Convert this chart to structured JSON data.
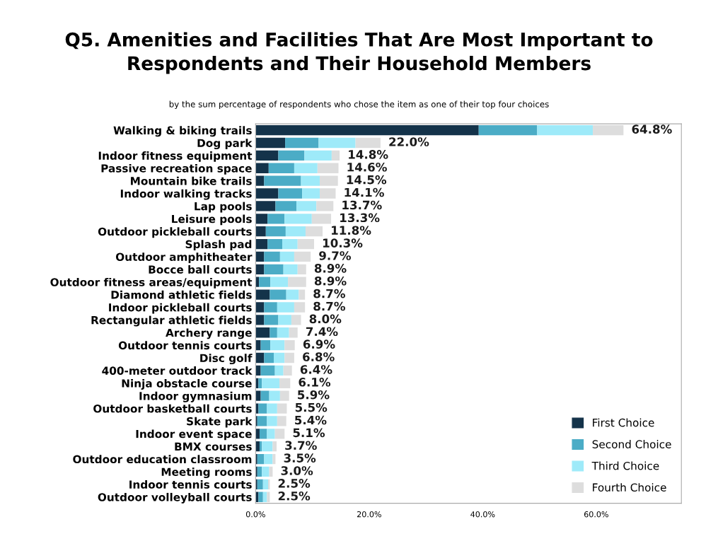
{
  "chart_data": {
    "type": "bar",
    "orientation": "horizontal",
    "stacked": true,
    "title": "Q5. Amenities and Facilities That Are Most Important to\nRespondents and Their Household Members",
    "subtitle": "by the sum percentage of respondents who chose the item as one of their top four choices",
    "categories": [
      "Walking & biking trails",
      "Dog park",
      "Indoor fitness equipment",
      "Passive recreation space",
      "Mountain bike trails",
      "Indoor walking tracks",
      "Lap pools",
      "Leisure pools",
      "Outdoor pickleball courts",
      "Splash pad",
      "Outdoor amphitheater",
      "Bocce ball courts",
      "Outdoor fitness areas/equipment",
      "Diamond athletic fields",
      "Indoor pickleball courts",
      "Rectangular athletic fields",
      "Archery range",
      "Outdoor tennis courts",
      "Disc golf",
      "400-meter outdoor track",
      "Ninja obstacle course",
      "Indoor gymnasium",
      "Outdoor basketball courts",
      "Skate park",
      "Indoor event space",
      "BMX courses",
      "Outdoor education classroom",
      "Meeting rooms",
      "Indoor tennis courts",
      "Outdoor volleyball courts"
    ],
    "series": [
      {
        "name": "First Choice",
        "color": "#14334a",
        "values": [
          39.3,
          5.2,
          4.0,
          2.3,
          1.5,
          4.0,
          3.5,
          2.1,
          1.8,
          2.1,
          1.5,
          1.5,
          0.6,
          2.5,
          1.5,
          1.5,
          2.5,
          0.9,
          1.5,
          0.9,
          0.5,
          0.9,
          0.5,
          0.3,
          0.7,
          0.7,
          0.3,
          0.3,
          0.3,
          0.5
        ]
      },
      {
        "name": "Second Choice",
        "color": "#4bacc6",
        "values": [
          10.3,
          5.9,
          4.6,
          4.5,
          6.5,
          4.2,
          3.7,
          3.0,
          3.5,
          2.6,
          2.8,
          3.4,
          2.0,
          2.9,
          2.3,
          2.5,
          1.3,
          1.7,
          1.7,
          2.5,
          0.6,
          1.5,
          1.5,
          1.7,
          1.3,
          0.4,
          1.2,
          0.8,
          1.0,
          0.8
        ]
      },
      {
        "name": "Third Choice",
        "color": "#9eeaf9",
        "values": [
          9.8,
          6.5,
          4.8,
          4.1,
          3.3,
          3.1,
          3.5,
          4.8,
          3.5,
          2.7,
          2.5,
          2.5,
          3.1,
          2.2,
          3.0,
          2.3,
          2.1,
          2.5,
          1.9,
          1.5,
          3.1,
          1.9,
          1.8,
          1.8,
          1.4,
          1.9,
          1.5,
          1.3,
          0.9,
          0.7
        ]
      },
      {
        "name": "Fourth Choice",
        "color": "#dddddd",
        "values": [
          5.4,
          4.4,
          1.4,
          3.7,
          3.2,
          2.8,
          3.0,
          3.4,
          3.0,
          2.9,
          2.9,
          1.5,
          3.2,
          1.1,
          1.9,
          1.7,
          1.5,
          1.8,
          1.7,
          1.5,
          1.9,
          1.6,
          1.7,
          1.6,
          1.7,
          0.7,
          0.5,
          0.6,
          0.3,
          0.5
        ]
      }
    ],
    "totals": [
      "64.8%",
      "22.0%",
      "14.8%",
      "14.6%",
      "14.5%",
      "14.1%",
      "13.7%",
      "13.3%",
      "11.8%",
      "10.3%",
      "9.7%",
      "8.9%",
      "8.9%",
      "8.7%",
      "8.7%",
      "8.0%",
      "7.4%",
      "6.9%",
      "6.8%",
      "6.4%",
      "6.1%",
      "5.9%",
      "5.5%",
      "5.4%",
      "5.1%",
      "3.7%",
      "3.5%",
      "3.0%",
      "2.5%",
      "2.5%"
    ],
    "xlim": [
      0,
      75
    ],
    "xticks": [
      {
        "value": 0,
        "label": "0.0%"
      },
      {
        "value": 20,
        "label": "20.0%"
      },
      {
        "value": 40,
        "label": "40.0%"
      },
      {
        "value": 60,
        "label": "60.0%"
      }
    ],
    "grid": false,
    "legend": "bottom right"
  }
}
